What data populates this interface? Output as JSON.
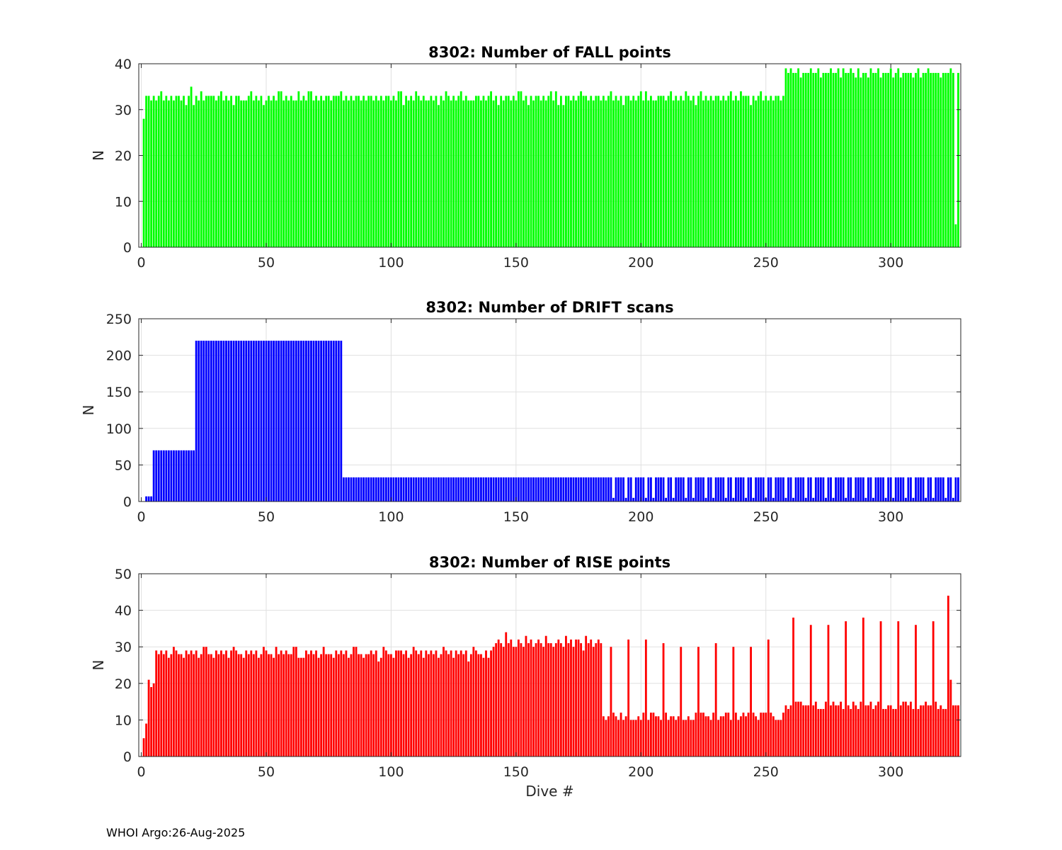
{
  "footer": "WHOI Argo:26-Aug-2025",
  "chart_data": [
    {
      "type": "bar",
      "title": "8302: Number of FALL points",
      "xlabel": "",
      "ylabel": "N",
      "xlim": [
        -1,
        328
      ],
      "ylim": [
        0,
        40
      ],
      "xticks": [
        0,
        50,
        100,
        150,
        200,
        250,
        300
      ],
      "yticks": [
        0,
        10,
        20,
        30,
        40
      ],
      "grid": true,
      "color": "#00ff00",
      "x": "dive number 1..327",
      "segments": [
        {
          "from": 1,
          "to": 1,
          "values": [
            28
          ]
        },
        {
          "from": 2,
          "to": 257,
          "pattern": [
            33,
            33,
            32,
            33,
            32,
            33,
            34,
            32,
            33,
            32,
            33,
            32
          ],
          "jitter_amplitude": 1
        },
        {
          "from": 258,
          "to": 325,
          "pattern": [
            38,
            38,
            39,
            38,
            38,
            39,
            37,
            38
          ],
          "jitter_amplitude": 1
        },
        {
          "from": 326,
          "to": 326,
          "values": [
            5
          ]
        },
        {
          "from": 327,
          "to": 327,
          "values": [
            38
          ]
        }
      ]
    },
    {
      "type": "bar",
      "title": "8302: Number of DRIFT scans",
      "xlabel": "",
      "ylabel": "N",
      "xlim": [
        -1,
        328
      ],
      "ylim": [
        0,
        250
      ],
      "xticks": [
        0,
        50,
        100,
        150,
        200,
        250,
        300
      ],
      "yticks": [
        0,
        50,
        100,
        150,
        200,
        250
      ],
      "grid": true,
      "color": "#0000ff",
      "x": "dive number 1..327",
      "segments": [
        {
          "from": 1,
          "to": 1,
          "values": [
            0
          ]
        },
        {
          "from": 2,
          "to": 4,
          "values": [
            7,
            7,
            7
          ]
        },
        {
          "from": 5,
          "to": 21,
          "constant": 70
        },
        {
          "from": 22,
          "to": 80,
          "constant": 220
        },
        {
          "from": 81,
          "to": 186,
          "constant": 33
        },
        {
          "from": 187,
          "to": 327,
          "pattern": [
            33,
            33,
            5,
            33,
            33,
            33,
            33,
            5
          ],
          "gaps": "about every 8th dive drops to ~5"
        }
      ]
    },
    {
      "type": "bar",
      "title": "8302: Number of RISE points",
      "xlabel": "Dive #",
      "ylabel": "N",
      "xlim": [
        -1,
        328
      ],
      "ylim": [
        0,
        50
      ],
      "xticks": [
        0,
        50,
        100,
        150,
        200,
        250,
        300
      ],
      "yticks": [
        0,
        10,
        20,
        30,
        40,
        50
      ],
      "grid": true,
      "color": "#ff0000",
      "x": "dive number 1..327",
      "segments": [
        {
          "from": 1,
          "to": 6,
          "values": [
            5,
            9,
            21,
            19,
            20,
            29
          ]
        },
        {
          "from": 7,
          "to": 140,
          "pattern": [
            28,
            29,
            28,
            29,
            27,
            28,
            30,
            29,
            28,
            28,
            27,
            29
          ],
          "jitter_amplitude": 1
        },
        {
          "from": 141,
          "to": 184,
          "pattern": [
            30,
            31,
            32,
            31,
            30,
            33,
            31,
            32
          ],
          "jitter_amplitude": 1
        },
        {
          "from": 185,
          "to": 257,
          "base": 11,
          "peaks": {
            "every": 7,
            "value": 31
          }
        },
        {
          "from": 258,
          "to": 322,
          "base": 14,
          "peaks": {
            "every": 7,
            "value": 37
          }
        },
        {
          "from": 323,
          "to": 327,
          "values": [
            44,
            21,
            14,
            14,
            14
          ]
        }
      ]
    }
  ]
}
